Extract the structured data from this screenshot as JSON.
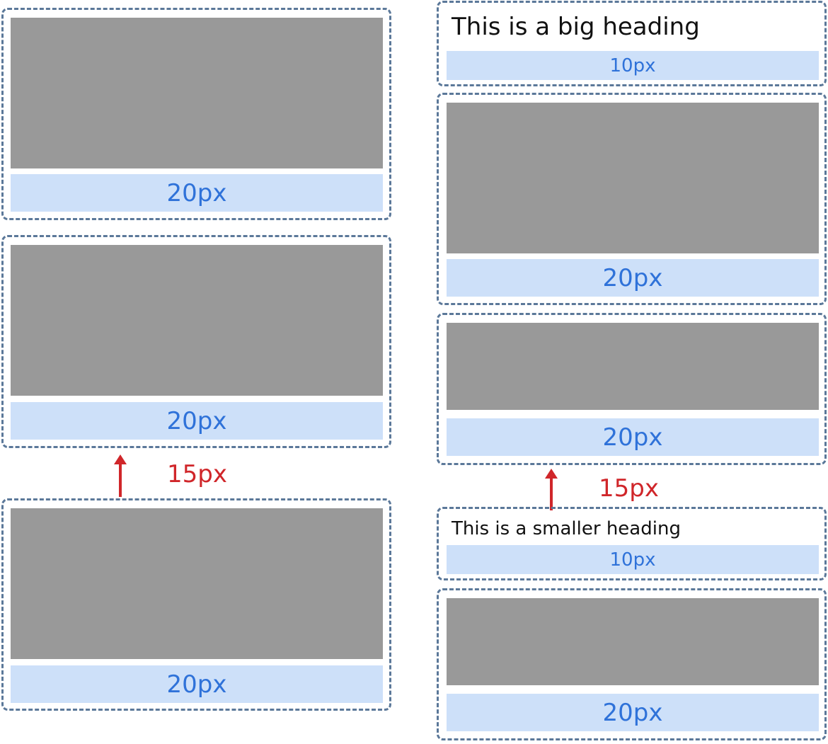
{
  "colors": {
    "box_border": "#5b7899",
    "image_fill": "#999999",
    "margin_band_fill": "#cde0f9",
    "margin_band_text": "#2f72d9",
    "gap_annotation": "#d0262a",
    "heading_text": "#111111"
  },
  "left_column": {
    "blocks": [
      {
        "margin_label": "20px"
      },
      {
        "margin_label": "20px"
      },
      {
        "margin_label": "20px"
      }
    ],
    "gap_label": "15px"
  },
  "right_column": {
    "big_heading": {
      "text": "This is a big heading",
      "margin_label": "10px"
    },
    "blocks": [
      {
        "margin_label": "20px"
      },
      {
        "margin_label": "20px"
      },
      {
        "margin_label": "20px"
      }
    ],
    "small_heading": {
      "text": "This is a smaller heading",
      "margin_label": "10px"
    },
    "gap_label": "15px"
  }
}
